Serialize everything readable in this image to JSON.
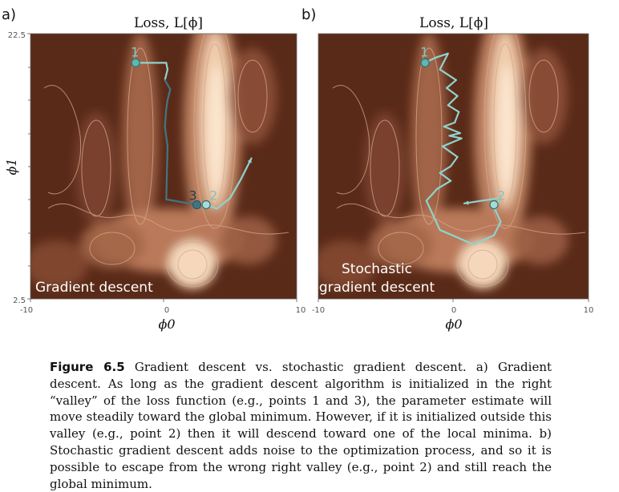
{
  "figure": {
    "panels": [
      {
        "id": "a",
        "label": "a)",
        "title": "Loss, L[ϕ]",
        "method": "Gradient descent",
        "xlabel": "ϕ0",
        "ylabel": "ϕ1",
        "xticks": [
          "-10",
          "0",
          "10"
        ],
        "yticks": [
          "22.5",
          "2.5"
        ]
      },
      {
        "id": "b",
        "label": "b)",
        "title": "Loss, L[ϕ]",
        "method": "Stochastic gradient descent",
        "xlabel": "ϕ0",
        "xticks": [
          "-10",
          "0",
          "10"
        ]
      }
    ],
    "point_labels": [
      "1",
      "2",
      "3"
    ]
  },
  "colors": {
    "surface_dark": "#5a2a18",
    "surface_mid": "#b4785a",
    "surface_light": "#fbe6cf",
    "path_dark": "#3f7686",
    "path_light": "#8fd3cf"
  },
  "chart_data": [
    {
      "type": "line",
      "panel": "a",
      "xlim": [
        -10,
        10
      ],
      "ylim": [
        2.5,
        22.5
      ],
      "series": [
        {
          "x": [
            -2.1,
            0.2,
            0.3,
            0.1,
            0.5,
            0.3,
            0.2,
            0.1,
            0.3,
            0.2,
            2.5
          ],
          "y": [
            20.3,
            20.3,
            19.8,
            19.0,
            18.3,
            17.5,
            16.8,
            15.5,
            14.0,
            10.0,
            9.6
          ]
        },
        {
          "x": [
            3.2,
            4.0,
            5.0,
            5.8,
            6.6
          ],
          "y": [
            9.6,
            9.3,
            10.1,
            11.5,
            13.1
          ]
        }
      ],
      "points": [
        {
          "label": "1",
          "x": -2.1,
          "y": 20.3
        },
        {
          "label": "3",
          "x": 2.5,
          "y": 9.6
        },
        {
          "label": "2",
          "x": 3.2,
          "y": 9.6
        }
      ]
    },
    {
      "type": "line",
      "panel": "b",
      "xlim": [
        -10,
        10
      ],
      "ylim": [
        2.5,
        22.5
      ],
      "series": [
        {
          "x": [
            -2.1,
            -1.3,
            -0.4,
            -1.0,
            0.2,
            -0.5,
            0.3,
            -0.4,
            0.4,
            0.1,
            -0.7,
            0.5,
            -0.3,
            0.6,
            -0.8,
            0.3,
            -0.2,
            -1.0,
            -0.2,
            -1.2,
            -2.0,
            -1.0,
            1.5,
            3.0,
            3.5,
            3.1,
            3.4,
            0.8
          ],
          "y": [
            20.3,
            20.7,
            21.0,
            19.8,
            19.0,
            18.4,
            17.8,
            17.1,
            16.6,
            15.8,
            15.5,
            15.0,
            14.8,
            14.6,
            14.0,
            13.2,
            12.5,
            12.0,
            11.4,
            10.8,
            9.9,
            7.7,
            6.6,
            7.3,
            8.3,
            9.2,
            10.1,
            9.7
          ]
        }
      ],
      "points": [
        {
          "label": "1",
          "x": -2.1,
          "y": 20.3
        },
        {
          "label": "2",
          "x": 3.0,
          "y": 9.6
        }
      ]
    }
  ],
  "caption": {
    "label": "Figure 6.5",
    "text": " Gradient descent vs. stochastic gradient descent. a) Gradient descent. As long as the gradient descent algorithm is initialized in the right “valley” of the loss function (e.g., points 1 and 3), the parameter estimate will move steadily toward the global minimum. However, if it is initialized outside this valley (e.g., point 2) then it will descend toward one of the local minima. b) Stochastic gradient descent adds noise to the optimization process, and so it is possible to escape from the wrong right valley (e.g., point 2) and still reach the global minimum."
  }
}
